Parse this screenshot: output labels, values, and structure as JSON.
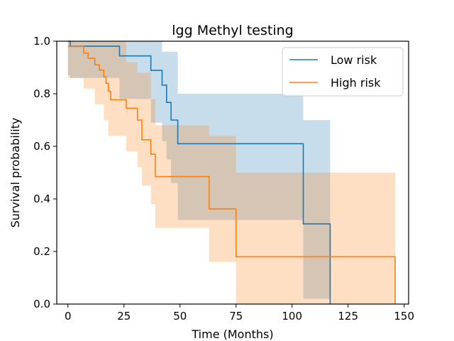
{
  "chart_data": {
    "type": "line",
    "subtype": "kaplan-meier survival curves with confidence bands",
    "title": "lgg Methyl testing",
    "xlabel": "Time (Months)",
    "ylabel": "Survival probability",
    "xlim": [
      -5,
      152
    ],
    "ylim": [
      0,
      1
    ],
    "xticks": [
      0,
      25,
      50,
      75,
      100,
      125,
      150
    ],
    "yticks": [
      0.0,
      0.2,
      0.4,
      0.6,
      0.8,
      1.0
    ],
    "xtick_labels": [
      "0",
      "25",
      "50",
      "75",
      "100",
      "125",
      "150"
    ],
    "ytick_labels": [
      "0.0",
      "0.2",
      "0.4",
      "0.6",
      "0.8",
      "1.0"
    ],
    "grid": false,
    "legend_position": "top-right",
    "series": [
      {
        "name": "Low risk",
        "color": "#1f77b4",
        "band_color": "#1f77b4",
        "steps": [
          [
            0,
            1.0
          ],
          [
            1,
            0.981
          ],
          [
            23,
            0.944
          ],
          [
            37,
            0.889
          ],
          [
            42,
            0.833
          ],
          [
            44,
            0.767
          ],
          [
            46,
            0.7
          ],
          [
            49,
            0.61
          ],
          [
            105,
            0.305
          ],
          [
            117,
            0.0
          ]
        ],
        "ci_lower": [
          [
            0,
            0.87
          ],
          [
            1,
            0.86
          ],
          [
            23,
            0.78
          ],
          [
            37,
            0.69
          ],
          [
            42,
            0.62
          ],
          [
            44,
            0.55
          ],
          [
            46,
            0.46
          ],
          [
            49,
            0.32
          ],
          [
            105,
            0.02
          ],
          [
            117,
            0.0
          ]
        ],
        "ci_upper": [
          [
            0,
            1.0
          ],
          [
            23,
            1.0
          ],
          [
            42,
            0.96
          ],
          [
            49,
            0.8
          ],
          [
            105,
            0.7
          ],
          [
            117,
            0.7
          ]
        ],
        "end_x": 117
      },
      {
        "name": "High risk",
        "color": "#ff7f0e",
        "band_color": "#ff7f0e",
        "steps": [
          [
            0,
            0.98
          ],
          [
            7,
            0.955
          ],
          [
            9,
            0.935
          ],
          [
            12,
            0.91
          ],
          [
            14,
            0.89
          ],
          [
            16,
            0.865
          ],
          [
            17,
            0.84
          ],
          [
            18,
            0.81
          ],
          [
            19,
            0.777
          ],
          [
            26,
            0.745
          ],
          [
            31,
            0.7
          ],
          [
            33,
            0.625
          ],
          [
            37,
            0.57
          ],
          [
            39,
            0.485
          ],
          [
            63,
            0.362
          ],
          [
            75,
            0.18
          ],
          [
            146,
            0.0
          ]
        ],
        "ci_lower": [
          [
            0,
            0.86
          ],
          [
            7,
            0.82
          ],
          [
            12,
            0.76
          ],
          [
            16,
            0.7
          ],
          [
            18,
            0.64
          ],
          [
            26,
            0.58
          ],
          [
            31,
            0.52
          ],
          [
            33,
            0.45
          ],
          [
            37,
            0.38
          ],
          [
            39,
            0.29
          ],
          [
            63,
            0.16
          ],
          [
            75,
            0.0
          ],
          [
            146,
            0.0
          ]
        ],
        "ci_upper": [
          [
            0,
            1.0
          ],
          [
            26,
            0.92
          ],
          [
            31,
            0.88
          ],
          [
            37,
            0.78
          ],
          [
            39,
            0.68
          ],
          [
            63,
            0.64
          ],
          [
            75,
            0.5
          ],
          [
            146,
            0.5
          ]
        ],
        "end_x": 146
      }
    ]
  }
}
